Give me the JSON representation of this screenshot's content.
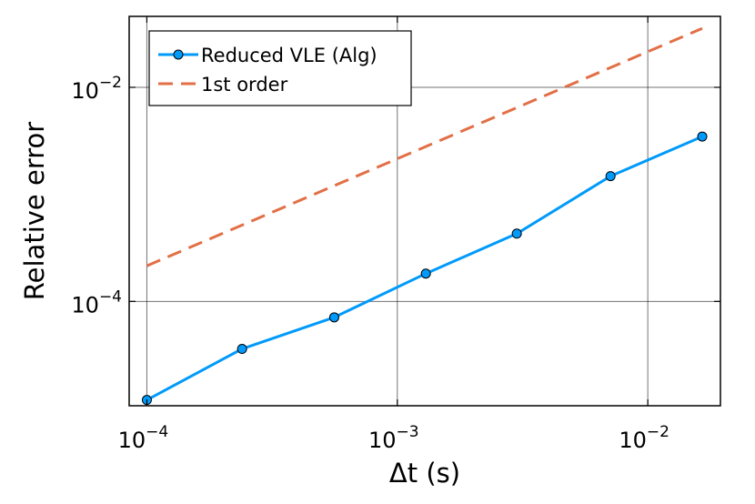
{
  "chart_data": {
    "type": "line",
    "scale": "log-log",
    "title": "",
    "xlabel": "Δt (s)",
    "ylabel": "Relative error",
    "xlim": [
      8.5e-05,
      0.0195
    ],
    "ylim": [
      1.06e-05,
      0.046
    ],
    "grid": true,
    "legend_position": "top-left",
    "x_ticks": [
      {
        "value": 0.0001,
        "base": "10",
        "exp": "−4"
      },
      {
        "value": 0.001,
        "base": "10",
        "exp": "−3"
      },
      {
        "value": 0.01,
        "base": "10",
        "exp": "−2"
      }
    ],
    "y_ticks": [
      {
        "value": 0.0001,
        "base": "10",
        "exp": "−4"
      },
      {
        "value": 0.01,
        "base": "10",
        "exp": "−2"
      }
    ],
    "series": [
      {
        "name": "Reduced VLE (Alg)",
        "color": "#009AFA",
        "style": "solid-with-markers",
        "x": [
          0.0001,
          0.00024,
          0.00056,
          0.0013,
          0.003,
          0.0071,
          0.0165
        ],
        "y": [
          1.2e-05,
          3.6e-05,
          7.1e-05,
          0.000182,
          0.00043,
          0.00148,
          0.00347
        ]
      },
      {
        "name": "1st order",
        "color": "#E26F46",
        "style": "dashed",
        "x": [
          0.0001,
          0.0165
        ],
        "y": [
          0.000215,
          0.0355
        ]
      }
    ]
  }
}
